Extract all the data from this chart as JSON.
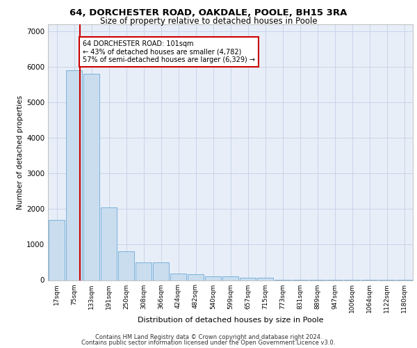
{
  "title1": "64, DORCHESTER ROAD, OAKDALE, POOLE, BH15 3RA",
  "title2": "Size of property relative to detached houses in Poole",
  "xlabel": "Distribution of detached houses by size in Poole",
  "ylabel": "Number of detached properties",
  "bar_categories": [
    "17sqm",
    "75sqm",
    "133sqm",
    "191sqm",
    "250sqm",
    "308sqm",
    "366sqm",
    "424sqm",
    "482sqm",
    "540sqm",
    "599sqm",
    "657sqm",
    "715sqm",
    "773sqm",
    "831sqm",
    "889sqm",
    "947sqm",
    "1006sqm",
    "1064sqm",
    "1122sqm",
    "1180sqm"
  ],
  "bar_values": [
    1700,
    5900,
    5800,
    2050,
    820,
    490,
    490,
    190,
    160,
    110,
    110,
    70,
    60,
    15,
    8,
    4,
    2,
    2,
    1,
    1,
    1
  ],
  "bar_color": "#c9ddef",
  "bar_edge_color": "#6aaad4",
  "grid_color": "#c8d4e8",
  "background_color": "#e8eef8",
  "vline_color": "#cc0000",
  "vline_x": 1.35,
  "annotation_text": "64 DORCHESTER ROAD: 101sqm\n← 43% of detached houses are smaller (4,782)\n57% of semi-detached houses are larger (6,329) →",
  "annotation_box_color": "#ffffff",
  "annotation_box_edge": "#cc0000",
  "ylim": [
    0,
    7200
  ],
  "yticks": [
    0,
    1000,
    2000,
    3000,
    4000,
    5000,
    6000,
    7000
  ],
  "footer1": "Contains HM Land Registry data © Crown copyright and database right 2024.",
  "footer2": "Contains public sector information licensed under the Open Government Licence v3.0."
}
